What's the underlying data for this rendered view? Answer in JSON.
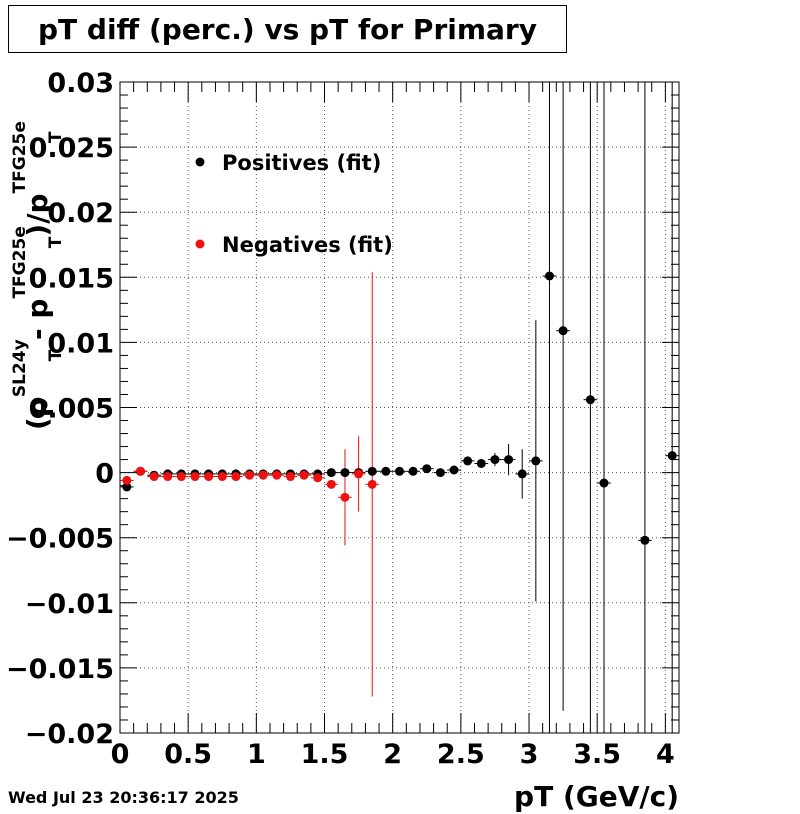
{
  "title": "pT diff (perc.) vs pT for Primary",
  "timestamp": "Wed Jul 23 20:36:17 2025",
  "chart_data": {
    "type": "scatter",
    "title": "pT diff (perc.) vs pT for Primary",
    "xlabel": "pT (GeV/c)",
    "ylabel": {
      "parts": [
        "(p",
        "SL24y",
        "T",
        " - p",
        "TFG25e",
        "T",
        ")/p",
        "TFG25e",
        "T"
      ]
    },
    "xlim": [
      0,
      4.1
    ],
    "ylim": [
      -0.02,
      0.03
    ],
    "xticks": [
      0,
      0.5,
      1,
      1.5,
      2,
      2.5,
      3,
      3.5,
      4
    ],
    "xtick_labels": [
      "0",
      "0.5",
      "1",
      "1.5",
      "2",
      "2.5",
      "3",
      "3.5",
      "4"
    ],
    "yticks": [
      -0.02,
      -0.015,
      -0.01,
      -0.005,
      0,
      0.005,
      0.01,
      0.015,
      0.02,
      0.025,
      0.03
    ],
    "ytick_labels": [
      "−0.02",
      "−0.015",
      "−0.01",
      "−0.005",
      "0",
      "0.005",
      "0.01",
      "0.015",
      "0.02",
      "0.025",
      "0.03"
    ],
    "grid": true,
    "legend_position": "top-left",
    "series": [
      {
        "name": "Positives (fit)",
        "color": "#000000",
        "points": [
          {
            "x": 0.05,
            "y": -0.0011,
            "err": 0.0002
          },
          {
            "x": 0.15,
            "y": 0.0001,
            "err": 0.0001
          },
          {
            "x": 0.25,
            "y": -0.0002,
            "err": 0.0001
          },
          {
            "x": 0.35,
            "y": -0.0001,
            "err": 0.0001
          },
          {
            "x": 0.45,
            "y": -0.0001,
            "err": 0.0001
          },
          {
            "x": 0.55,
            "y": -0.0001,
            "err": 0.0001
          },
          {
            "x": 0.65,
            "y": -0.0001,
            "err": 0.0001
          },
          {
            "x": 0.75,
            "y": -0.0001,
            "err": 0.0001
          },
          {
            "x": 0.85,
            "y": -0.0001,
            "err": 0.0001
          },
          {
            "x": 0.95,
            "y": -0.0001,
            "err": 0.0001
          },
          {
            "x": 1.05,
            "y": -0.0001,
            "err": 0.0001
          },
          {
            "x": 1.15,
            "y": -0.0001,
            "err": 0.0001
          },
          {
            "x": 1.25,
            "y": -0.0001,
            "err": 0.0001
          },
          {
            "x": 1.35,
            "y": -0.0001,
            "err": 0.0001
          },
          {
            "x": 1.45,
            "y": -0.0001,
            "err": 0.0001
          },
          {
            "x": 1.55,
            "y": 0.0,
            "err": 0.0002
          },
          {
            "x": 1.65,
            "y": 0.0,
            "err": 0.0002
          },
          {
            "x": 1.75,
            "y": 0.0,
            "err": 0.0002
          },
          {
            "x": 1.85,
            "y": 0.0001,
            "err": 0.0002
          },
          {
            "x": 1.95,
            "y": 0.0001,
            "err": 0.0002
          },
          {
            "x": 2.05,
            "y": 0.0001,
            "err": 0.0002
          },
          {
            "x": 2.15,
            "y": 0.0001,
            "err": 0.0002
          },
          {
            "x": 2.25,
            "y": 0.0003,
            "err": 0.0002
          },
          {
            "x": 2.35,
            "y": 0.0,
            "err": 0.0002
          },
          {
            "x": 2.45,
            "y": 0.0002,
            "err": 0.0002
          },
          {
            "x": 2.55,
            "y": 0.0009,
            "err": 0.0003
          },
          {
            "x": 2.65,
            "y": 0.0007,
            "err": 0.0003
          },
          {
            "x": 2.75,
            "y": 0.001,
            "err": 0.0005
          },
          {
            "x": 2.85,
            "y": 0.001,
            "err": 0.0012
          },
          {
            "x": 2.95,
            "y": -0.0001,
            "err": 0.0019
          },
          {
            "x": 3.05,
            "y": 0.0009,
            "err": 0.0108
          },
          {
            "x": 3.15,
            "y": 0.0151,
            "err": 0.04
          },
          {
            "x": 3.25,
            "y": 0.0109,
            "err": 0.0292
          },
          {
            "x": 3.45,
            "y": 0.0056,
            "err": 0.04
          },
          {
            "x": 3.55,
            "y": -0.0008,
            "err": 0.04
          },
          {
            "x": 3.85,
            "y": -0.0052,
            "err": 0.04
          },
          {
            "x": 4.05,
            "y": 0.0013,
            "err": 0.04
          }
        ]
      },
      {
        "name": "Negatives (fit)",
        "color": "#ee1111",
        "points": [
          {
            "x": 0.05,
            "y": -0.0006,
            "err": 0.0002
          },
          {
            "x": 0.15,
            "y": 0.0001,
            "err": 0.0002
          },
          {
            "x": 0.25,
            "y": -0.0003,
            "err": 0.0001
          },
          {
            "x": 0.35,
            "y": -0.0003,
            "err": 0.0001
          },
          {
            "x": 0.45,
            "y": -0.0003,
            "err": 0.0001
          },
          {
            "x": 0.55,
            "y": -0.0003,
            "err": 0.0001
          },
          {
            "x": 0.65,
            "y": -0.0003,
            "err": 0.0001
          },
          {
            "x": 0.75,
            "y": -0.0003,
            "err": 0.0001
          },
          {
            "x": 0.85,
            "y": -0.0003,
            "err": 0.0001
          },
          {
            "x": 0.95,
            "y": -0.0002,
            "err": 0.0001
          },
          {
            "x": 1.05,
            "y": -0.0002,
            "err": 0.0001
          },
          {
            "x": 1.15,
            "y": -0.0002,
            "err": 0.0001
          },
          {
            "x": 1.25,
            "y": -0.0003,
            "err": 0.0001
          },
          {
            "x": 1.35,
            "y": -0.0002,
            "err": 0.0001
          },
          {
            "x": 1.45,
            "y": -0.0004,
            "err": 0.0002
          },
          {
            "x": 1.55,
            "y": -0.0009,
            "err": 0.0003
          },
          {
            "x": 1.65,
            "y": -0.0019,
            "err": 0.0037
          },
          {
            "x": 1.75,
            "y": -0.0001,
            "err": 0.0029
          },
          {
            "x": 1.85,
            "y": -0.0009,
            "err": 0.0163
          }
        ]
      }
    ]
  }
}
